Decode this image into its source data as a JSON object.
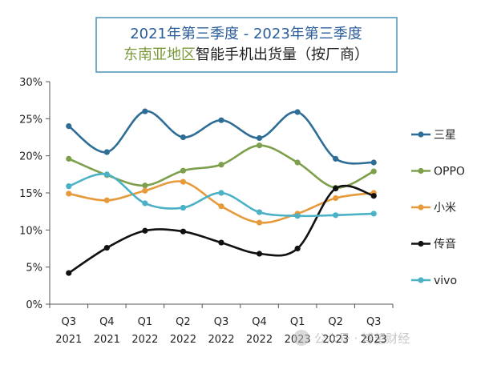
{
  "chart_data": {
    "type": "line",
    "title_line1": {
      "part1": "2021年第三季度",
      "sep": " - ",
      "part2": "2023年第三季度"
    },
    "title_line2": {
      "part1": "东南亚地区",
      "part2": "智能手机出货量（按厂商）"
    },
    "categories": [
      [
        "Q3",
        "2021"
      ],
      [
        "Q4",
        "2021"
      ],
      [
        "Q1",
        "2022"
      ],
      [
        "Q2",
        "2022"
      ],
      [
        "Q3",
        "2022"
      ],
      [
        "Q4",
        "2022"
      ],
      [
        "Q1",
        "2023"
      ],
      [
        "Q2",
        "2023"
      ],
      [
        "Q3",
        "2023"
      ]
    ],
    "yticks": [
      "0%",
      "5%",
      "10%",
      "15%",
      "20%",
      "25%",
      "30%"
    ],
    "ylim": [
      0,
      30
    ],
    "series": [
      {
        "name": "三星",
        "color": "#2e6e96",
        "values": [
          24.0,
          20.5,
          26.0,
          22.5,
          24.8,
          22.4,
          25.9,
          19.6,
          19.1
        ]
      },
      {
        "name": "OPPO",
        "color": "#7ea04d",
        "values": [
          19.6,
          17.4,
          16.0,
          18.0,
          18.8,
          21.4,
          19.1,
          15.7,
          17.9
        ]
      },
      {
        "name": "小米",
        "color": "#e69a3c",
        "values": [
          14.9,
          14.0,
          15.3,
          16.5,
          13.2,
          11.0,
          12.2,
          14.3,
          15.0
        ]
      },
      {
        "name": "传音",
        "color": "#111111",
        "values": [
          4.2,
          7.6,
          9.9,
          9.8,
          8.3,
          6.8,
          7.5,
          15.6,
          14.6
        ]
      },
      {
        "name": "vivo",
        "color": "#4bb1c7",
        "values": [
          15.9,
          17.5,
          13.6,
          13.0,
          15.0,
          12.4,
          11.9,
          12.0,
          12.2
        ]
      }
    ],
    "grid": false,
    "legend_position": "right"
  },
  "colors": {
    "title_blue": "#2a5c9a",
    "title_green": "#7a9a3a",
    "title_dark": "#222222",
    "title_border": "#4a90b8",
    "axis": "#555555"
  },
  "watermark": "公众号 · 博望财经"
}
